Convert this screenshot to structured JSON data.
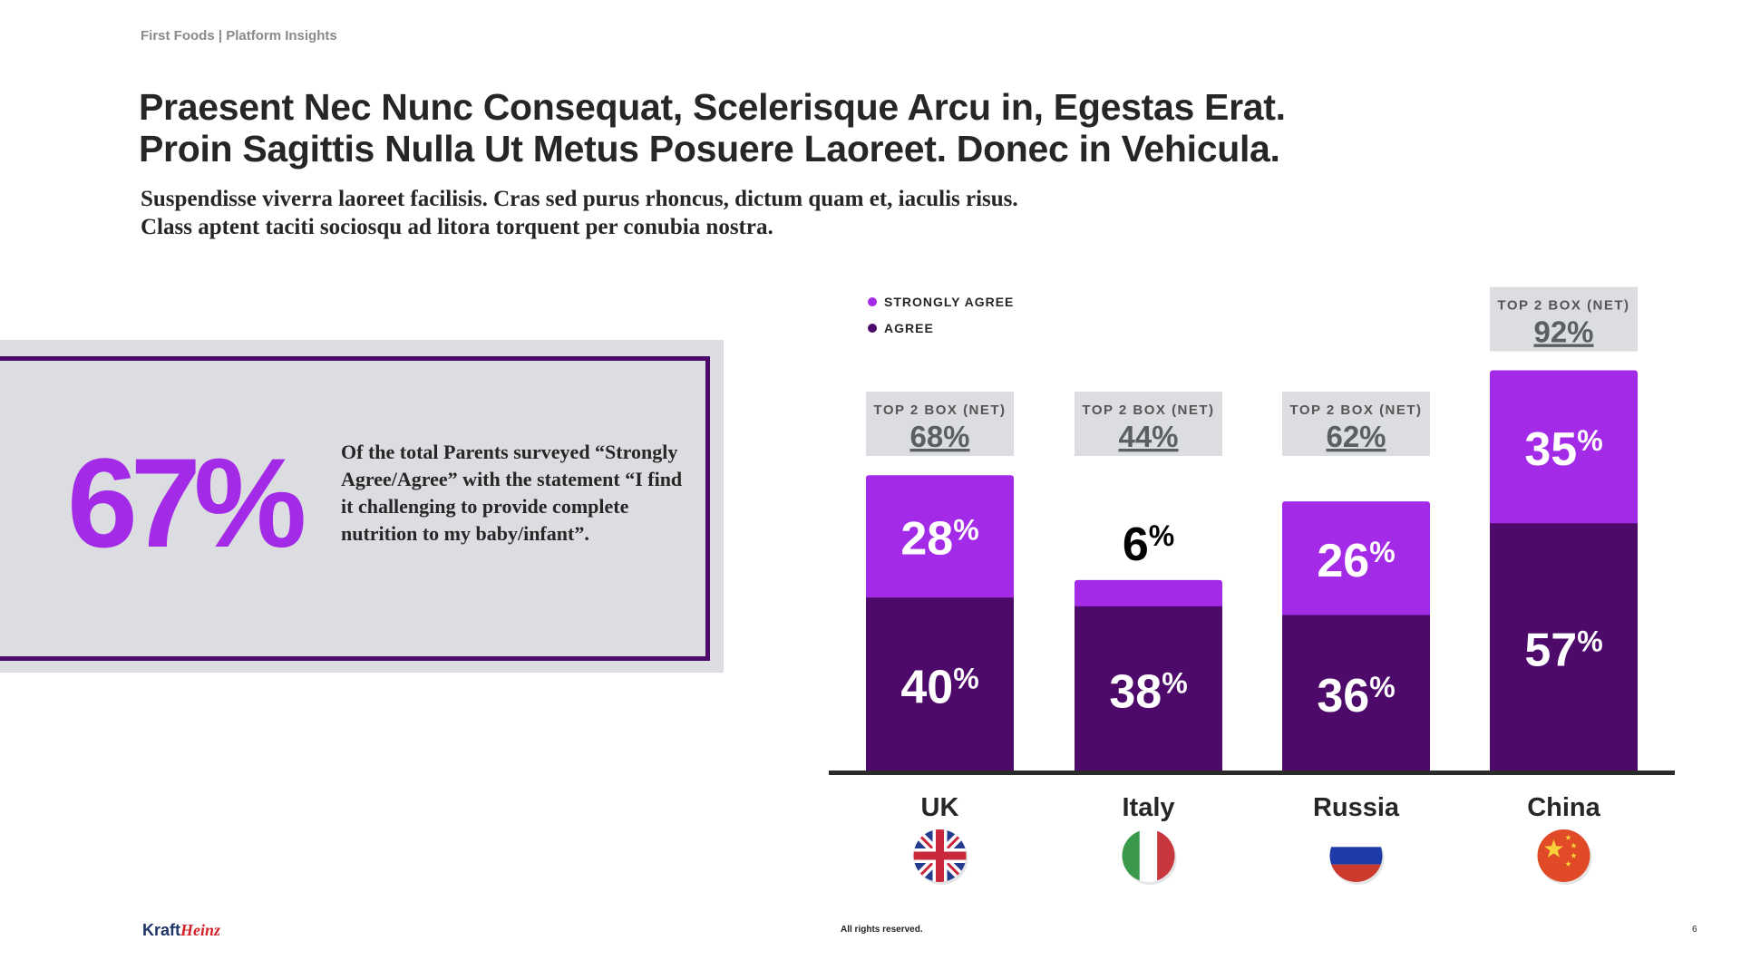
{
  "header": {
    "breadcrumb": "First Foods | Platform Insights"
  },
  "title": {
    "line1": "Praesent Nec Nunc Consequat, Scelerisque Arcu in, Egestas Erat.",
    "line2": "Proin Sagittis Nulla Ut Metus Posuere Laoreet. Donec in Vehicula."
  },
  "subtitle": {
    "line1": "Suspendisse viverra laoreet facilisis. Cras sed purus rhoncus, dictum quam et, iaculis risus.",
    "line2": "Class aptent taciti sociosqu ad litora torquent per conubia nostra."
  },
  "callout": {
    "value": "67%",
    "text": "Of the total Parents surveyed “Strongly Agree/Agree” with the statement “I find it challenging to provide complete nutrition to my baby/infant”."
  },
  "colors": {
    "strongly_agree": "#a32be8",
    "agree": "#4e0a6a",
    "net_box": "#dcdde0",
    "frame": "#4e0a6a"
  },
  "chart_data": {
    "type": "bar",
    "stacked": true,
    "categories": [
      "UK",
      "Italy",
      "Russia",
      "China"
    ],
    "category_icons": [
      "uk-flag-icon",
      "italy-flag-icon",
      "russia-flag-icon",
      "china-flag-icon"
    ],
    "series": [
      {
        "name": "AGREE",
        "values": [
          40,
          38,
          36,
          57
        ],
        "color": "#4e0a6a"
      },
      {
        "name": "STRONGLY AGREE",
        "values": [
          28,
          6,
          26,
          35
        ],
        "color": "#a32be8"
      }
    ],
    "net_label": "TOP 2 BOX (NET)",
    "net_values": [
      68,
      44,
      62,
      92
    ],
    "value_suffix": "%",
    "legend_placement": "top-left",
    "ylim": [
      0,
      100
    ],
    "grid": false
  },
  "footer": {
    "logo_part1": "Kraft",
    "logo_part2": "Heinz",
    "rights": "All rights reserved.",
    "page": "6"
  }
}
